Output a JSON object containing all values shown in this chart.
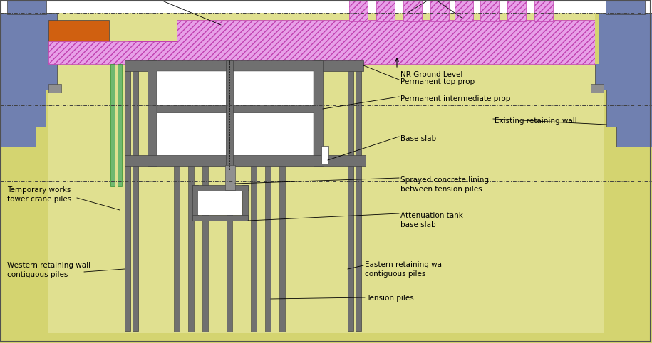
{
  "bg_yellow": "#d4d470",
  "bg_yellow2": "#e0e090",
  "white": "#ffffff",
  "gray": "#707070",
  "gray_dark": "#404040",
  "gray_med": "#909090",
  "green_pile": "#70b870",
  "blue_gray": "#7080b0",
  "orange": "#d06010",
  "pink_edge": "#c040b0",
  "pink_fill": "#e8a0e8",
  "black": "#000000",
  "labels": {
    "nr_ground": "NR Ground Level",
    "perm_top": "Permanent top prop",
    "perm_inter": "Permanent intermediate prop",
    "existing_ret": "Existing retaining wall",
    "base_slab": "Base slab",
    "sprayed_concrete": "Sprayed concrete lining\nbetween tension piles",
    "atten_tank": "Attenuation tank\nbase slab",
    "temp_works": "Temporary works\ntower crane piles",
    "western_ret": "Western retaining wall\ncontiguous piles",
    "eastern_ret": "Eastern retaining wall\ncontiguous piles",
    "tension_piles": "Tension piles"
  }
}
